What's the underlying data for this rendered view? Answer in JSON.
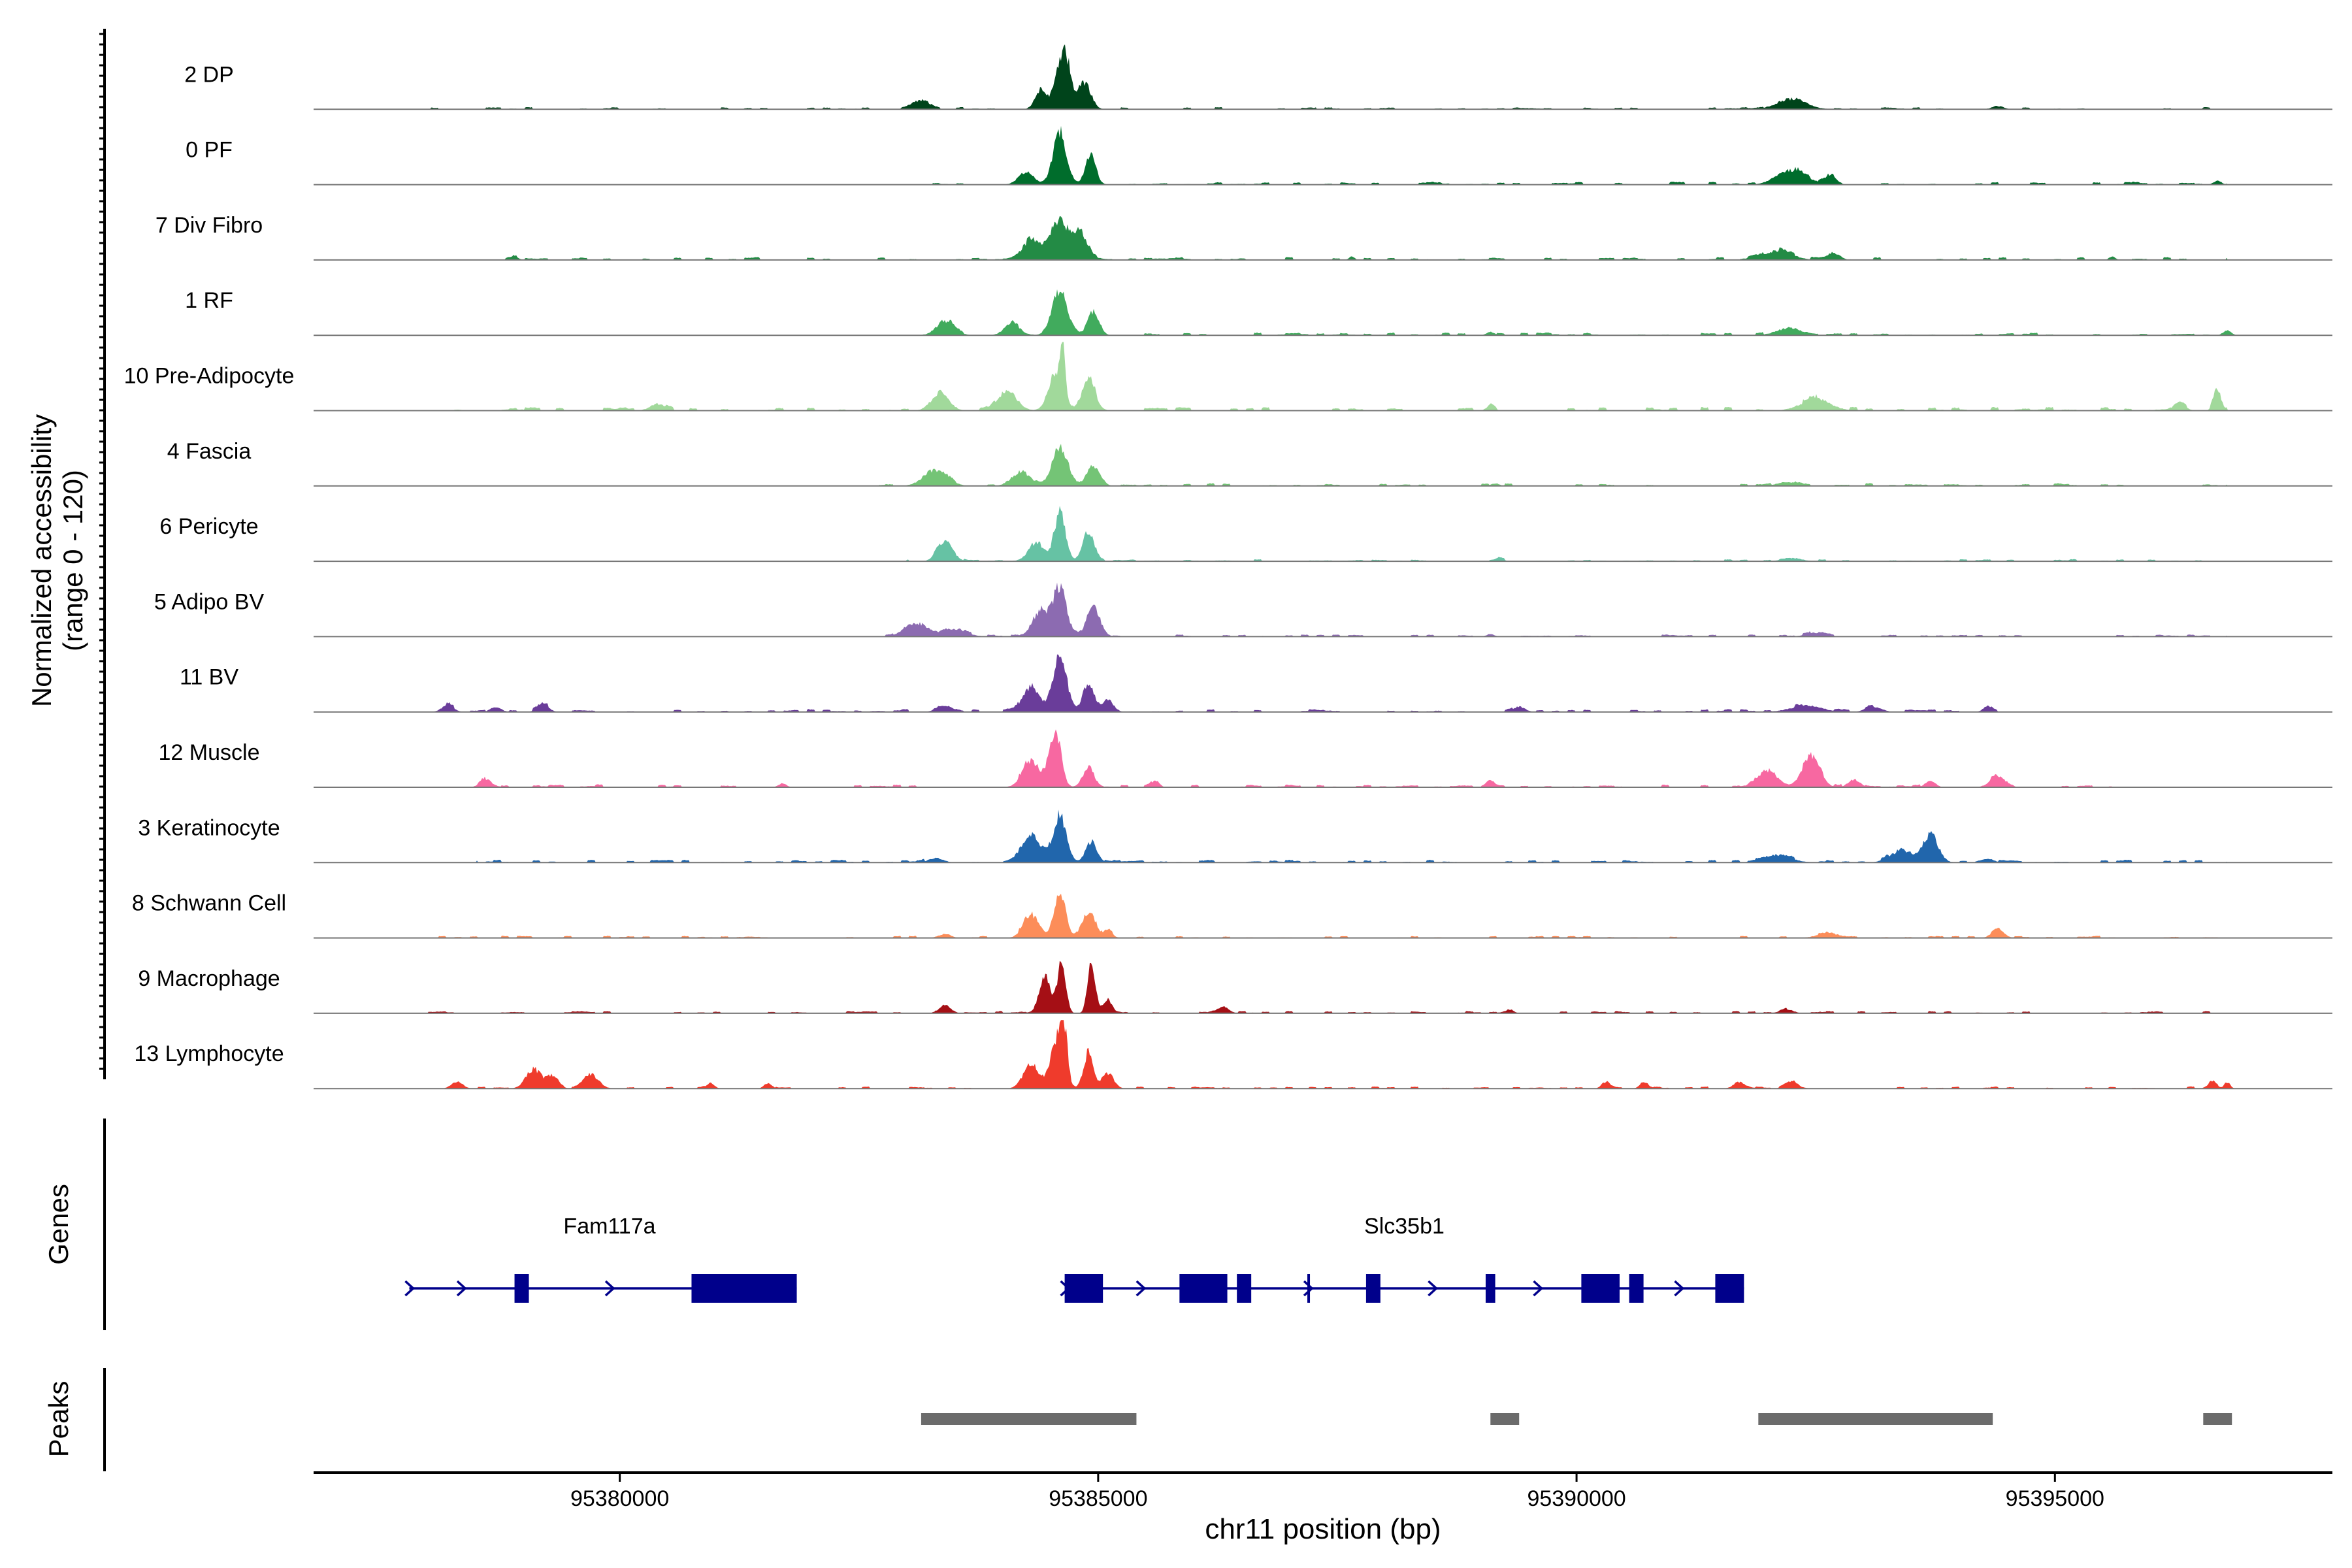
{
  "chart_data": {
    "type": "area",
    "title": "",
    "xlabel": "chr11 position (bp)",
    "ylabel": "Normalized accessibility",
    "ylabel_range": "(range 0 - 120)",
    "y_range": [
      0,
      120
    ],
    "xlim": [
      95376800,
      95397900
    ],
    "x_ticks": [
      95380000,
      95385000,
      95390000,
      95395000
    ],
    "tracks": [
      {
        "name": "2 DP",
        "color": "#00441b",
        "peaks": [
          [
            95383150,
            0.14,
            80
          ],
          [
            95384400,
            0.28,
            60
          ],
          [
            95384600,
            0.66,
            60
          ],
          [
            95384680,
            0.5,
            45
          ],
          [
            95384850,
            0.42,
            70
          ],
          [
            95392250,
            0.16,
            150
          ],
          [
            95394400,
            0.05,
            60
          ]
        ],
        "noise": [
          [
            95378000,
            95396800,
            0.03
          ]
        ]
      },
      {
        "name": "0 PF",
        "color": "#006d2c",
        "peaks": [
          [
            95384250,
            0.2,
            80
          ],
          [
            95384600,
            0.8,
            70
          ],
          [
            95384920,
            0.46,
            55
          ],
          [
            95392250,
            0.22,
            150
          ],
          [
            95392650,
            0.12,
            60
          ],
          [
            95396700,
            0.06,
            40
          ]
        ],
        "noise": [
          [
            95383000,
            95396800,
            0.04
          ]
        ]
      },
      {
        "name": "7 Div Fibro",
        "color": "#238b45",
        "peaks": [
          [
            95384300,
            0.3,
            90
          ],
          [
            95384580,
            0.6,
            90
          ],
          [
            95384800,
            0.44,
            80
          ],
          [
            95392100,
            0.14,
            150
          ],
          [
            95392700,
            0.1,
            60
          ],
          [
            95378900,
            0.05,
            40
          ],
          [
            95387650,
            0.05,
            30
          ],
          [
            95395600,
            0.06,
            30
          ]
        ],
        "noise": [
          [
            95378800,
            95396800,
            0.04
          ]
        ]
      },
      {
        "name": "1 RF",
        "color": "#41ab5d",
        "peaks": [
          [
            95383400,
            0.22,
            90
          ],
          [
            95384100,
            0.18,
            80
          ],
          [
            95384600,
            0.68,
            80
          ],
          [
            95384950,
            0.36,
            60
          ],
          [
            95389100,
            0.05,
            40
          ],
          [
            95392200,
            0.1,
            120
          ],
          [
            95396800,
            0.08,
            40
          ]
        ],
        "noise": [
          [
            95383000,
            95396800,
            0.04
          ]
        ]
      },
      {
        "name": "10 Pre-Adipocyte",
        "color": "#a1d99b",
        "peaks": [
          [
            95383350,
            0.28,
            90
          ],
          [
            95384050,
            0.3,
            100
          ],
          [
            95384550,
            0.55,
            70
          ],
          [
            95384630,
            0.86,
            28
          ],
          [
            95384900,
            0.48,
            70
          ],
          [
            95380400,
            0.1,
            80
          ],
          [
            95392500,
            0.18,
            150
          ],
          [
            95396700,
            0.3,
            40
          ],
          [
            95396300,
            0.12,
            60
          ],
          [
            95389100,
            0.08,
            40
          ]
        ],
        "noise": [
          [
            95378000,
            95396800,
            0.05
          ]
        ]
      },
      {
        "name": "4 Fascia",
        "color": "#74c476",
        "peaks": [
          [
            95383300,
            0.25,
            120
          ],
          [
            95384200,
            0.2,
            100
          ],
          [
            95384600,
            0.62,
            80
          ],
          [
            95384950,
            0.3,
            70
          ],
          [
            95392200,
            0.06,
            100
          ],
          [
            95389150,
            0.04,
            40
          ]
        ],
        "noise": [
          [
            95382700,
            95396800,
            0.04
          ]
        ]
      },
      {
        "name": "6 Pericyte",
        "color": "#66c2a4",
        "peaks": [
          [
            95383400,
            0.3,
            80
          ],
          [
            95384350,
            0.28,
            80
          ],
          [
            95384600,
            0.72,
            60
          ],
          [
            95384900,
            0.45,
            60
          ],
          [
            95389200,
            0.04,
            40
          ],
          [
            95392250,
            0.05,
            100
          ]
        ],
        "noise": [
          [
            95383000,
            95396800,
            0.03
          ]
        ]
      },
      {
        "name": "5 Adipo BV",
        "color": "#8c6bb1",
        "peaks": [
          [
            95383100,
            0.2,
            120
          ],
          [
            95383500,
            0.12,
            120
          ],
          [
            95384400,
            0.4,
            80
          ],
          [
            95384600,
            0.76,
            70
          ],
          [
            95384950,
            0.45,
            70
          ],
          [
            95392500,
            0.06,
            100
          ],
          [
            95389100,
            0.04,
            40
          ]
        ],
        "noise": [
          [
            95382700,
            95396800,
            0.03
          ]
        ]
      },
      {
        "name": "11 BV",
        "color": "#6a3d9a",
        "peaks": [
          [
            95378200,
            0.1,
            60
          ],
          [
            95378700,
            0.08,
            50
          ],
          [
            95379200,
            0.1,
            60
          ],
          [
            95384300,
            0.38,
            90
          ],
          [
            95384600,
            0.86,
            70
          ],
          [
            95384900,
            0.42,
            60
          ],
          [
            95385100,
            0.18,
            60
          ],
          [
            95383400,
            0.1,
            80
          ],
          [
            95389400,
            0.08,
            60
          ],
          [
            95392400,
            0.1,
            150
          ],
          [
            95393100,
            0.08,
            80
          ],
          [
            95394300,
            0.08,
            50
          ]
        ],
        "noise": [
          [
            95378000,
            95394400,
            0.04
          ]
        ]
      },
      {
        "name": "12 Muscle",
        "color": "#f768a1",
        "peaks": [
          [
            95378600,
            0.12,
            60
          ],
          [
            95381700,
            0.06,
            40
          ],
          [
            95384300,
            0.4,
            90
          ],
          [
            95384550,
            0.85,
            60
          ],
          [
            95384900,
            0.3,
            60
          ],
          [
            95385600,
            0.1,
            40
          ],
          [
            95389100,
            0.1,
            40
          ],
          [
            95392000,
            0.26,
            100
          ],
          [
            95392450,
            0.5,
            90
          ],
          [
            95392900,
            0.12,
            60
          ],
          [
            95394400,
            0.16,
            80
          ],
          [
            95393700,
            0.1,
            50
          ]
        ],
        "noise": [
          [
            95378300,
            95395600,
            0.04
          ]
        ]
      },
      {
        "name": "3 Keratinocyte",
        "color": "#2166ac",
        "peaks": [
          [
            95384300,
            0.4,
            100
          ],
          [
            95384600,
            0.72,
            70
          ],
          [
            95384930,
            0.32,
            60
          ],
          [
            95383300,
            0.06,
            80
          ],
          [
            95392100,
            0.1,
            150
          ],
          [
            95393400,
            0.18,
            120
          ],
          [
            95393700,
            0.42,
            80
          ],
          [
            95394300,
            0.06,
            60
          ]
        ],
        "noise": [
          [
            95378500,
            95396800,
            0.04
          ]
        ]
      },
      {
        "name": "8 Schwann Cell",
        "color": "#fc8d59",
        "peaks": [
          [
            95384300,
            0.36,
            80
          ],
          [
            95384600,
            0.7,
            60
          ],
          [
            95384900,
            0.38,
            70
          ],
          [
            95385100,
            0.1,
            50
          ],
          [
            95383400,
            0.06,
            60
          ],
          [
            95392600,
            0.06,
            100
          ],
          [
            95394400,
            0.14,
            60
          ]
        ],
        "noise": [
          [
            95378000,
            95396800,
            0.03
          ]
        ]
      },
      {
        "name": "9 Macrophage",
        "color": "#a50f15",
        "peaks": [
          [
            95383400,
            0.12,
            60
          ],
          [
            95384450,
            0.55,
            60
          ],
          [
            95384620,
            0.86,
            40
          ],
          [
            95384930,
            0.74,
            40
          ],
          [
            95385100,
            0.2,
            40
          ],
          [
            95386300,
            0.1,
            60
          ],
          [
            95389300,
            0.06,
            40
          ],
          [
            95392200,
            0.06,
            60
          ]
        ],
        "noise": [
          [
            95378000,
            95396800,
            0.03
          ]
        ]
      },
      {
        "name": "13 Lymphocyte",
        "color": "#ef3b2c",
        "peaks": [
          [
            95378300,
            0.1,
            60
          ],
          [
            95379100,
            0.3,
            80
          ],
          [
            95379300,
            0.18,
            60
          ],
          [
            95379700,
            0.2,
            80
          ],
          [
            95380950,
            0.08,
            40
          ],
          [
            95381550,
            0.08,
            40
          ],
          [
            95384300,
            0.38,
            80
          ],
          [
            95384550,
            0.62,
            60
          ],
          [
            95384640,
            0.9,
            40
          ],
          [
            95384900,
            0.56,
            50
          ],
          [
            95385100,
            0.24,
            60
          ],
          [
            95390300,
            0.1,
            40
          ],
          [
            95390700,
            0.1,
            40
          ],
          [
            95391700,
            0.1,
            60
          ],
          [
            95392250,
            0.12,
            60
          ],
          [
            95396650,
            0.12,
            40
          ],
          [
            95396800,
            0.1,
            30
          ]
        ],
        "noise": [
          [
            95378000,
            95396800,
            0.03
          ]
        ]
      }
    ],
    "genes_label": "Genes",
    "genes": [
      {
        "name": "Fam117a",
        "strand": "+",
        "start": 95377800,
        "end": 95381850,
        "exons": [
          [
            95378900,
            95379050
          ],
          [
            95380750,
            95381850
          ]
        ]
      },
      {
        "name": "Slc35b1",
        "strand": "+",
        "start": 95384650,
        "end": 95391750,
        "exons": [
          [
            95384650,
            95385050
          ],
          [
            95385850,
            95386350
          ],
          [
            95386450,
            95386600
          ],
          [
            95387800,
            95387950
          ],
          [
            95389050,
            95389150
          ],
          [
            95390050,
            95390450
          ],
          [
            95390550,
            95390700
          ],
          [
            95391450,
            95391750
          ]
        ],
        "marks": [
          95387200
        ]
      }
    ],
    "peaks_label": "Peaks",
    "peak_regions": [
      [
        95383150,
        95385400
      ],
      [
        95389100,
        95389400
      ],
      [
        95391900,
        95394350
      ],
      [
        95396550,
        95396850
      ]
    ]
  }
}
